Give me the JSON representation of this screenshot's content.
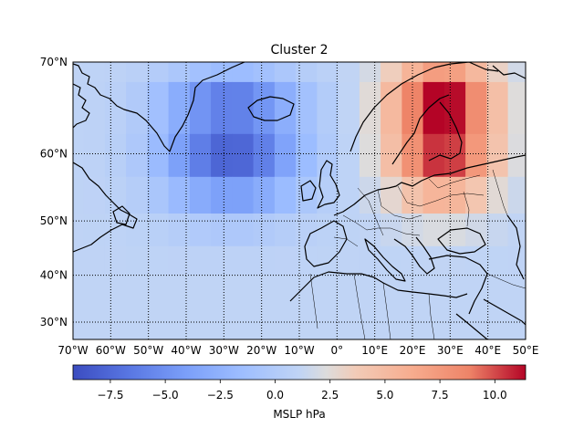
{
  "title": "Cluster 2",
  "map": {
    "projection": "Mercator",
    "lon_range": [
      -70,
      50
    ],
    "lat_range": [
      26,
      70
    ],
    "lat_ticks": [
      {
        "value": 70,
        "label": "70°N"
      },
      {
        "value": 60,
        "label": "60°N"
      },
      {
        "value": 50,
        "label": "50°N"
      },
      {
        "value": 40,
        "label": "40°N"
      },
      {
        "value": 30,
        "label": "30°N"
      }
    ],
    "lon_ticks": [
      {
        "value": -70,
        "label": "70°W"
      },
      {
        "value": -60,
        "label": "60°W"
      },
      {
        "value": -50,
        "label": "50°W"
      },
      {
        "value": -40,
        "label": "40°W"
      },
      {
        "value": -30,
        "label": "30°W"
      },
      {
        "value": -20,
        "label": "20°W"
      },
      {
        "value": -10,
        "label": "10°W"
      },
      {
        "value": 0,
        "label": "0°"
      },
      {
        "value": 10,
        "label": "10°E"
      },
      {
        "value": 20,
        "label": "20°E"
      },
      {
        "value": 30,
        "label": "30°E"
      },
      {
        "value": 40,
        "label": "40°E"
      },
      {
        "value": 50,
        "label": "50°E"
      }
    ],
    "gridlines": "dotted",
    "coastlines": true,
    "borders": true,
    "variable": "MSLP anomaly",
    "cells": "5.625° grid, values approximate",
    "field_centers": [
      {
        "name": "low",
        "lon": -28,
        "lat": 61,
        "value": -9.0
      },
      {
        "name": "high",
        "lon": 28,
        "lat": 63.5,
        "value": 11.2
      }
    ]
  },
  "colorbar": {
    "colormap": "coolwarm",
    "label": "MSLP hPa",
    "vmin": -9.2,
    "vmax": 11.4,
    "ticks": [
      {
        "value": -7.5,
        "label": "−7.5"
      },
      {
        "value": -5.0,
        "label": "−5.0"
      },
      {
        "value": -2.5,
        "label": "−2.5"
      },
      {
        "value": 0.0,
        "label": "0.0"
      },
      {
        "value": 2.5,
        "label": "2.5"
      },
      {
        "value": 5.0,
        "label": "5.0"
      },
      {
        "value": 7.5,
        "label": "7.5"
      },
      {
        "value": 10.0,
        "label": "10.0"
      }
    ]
  }
}
